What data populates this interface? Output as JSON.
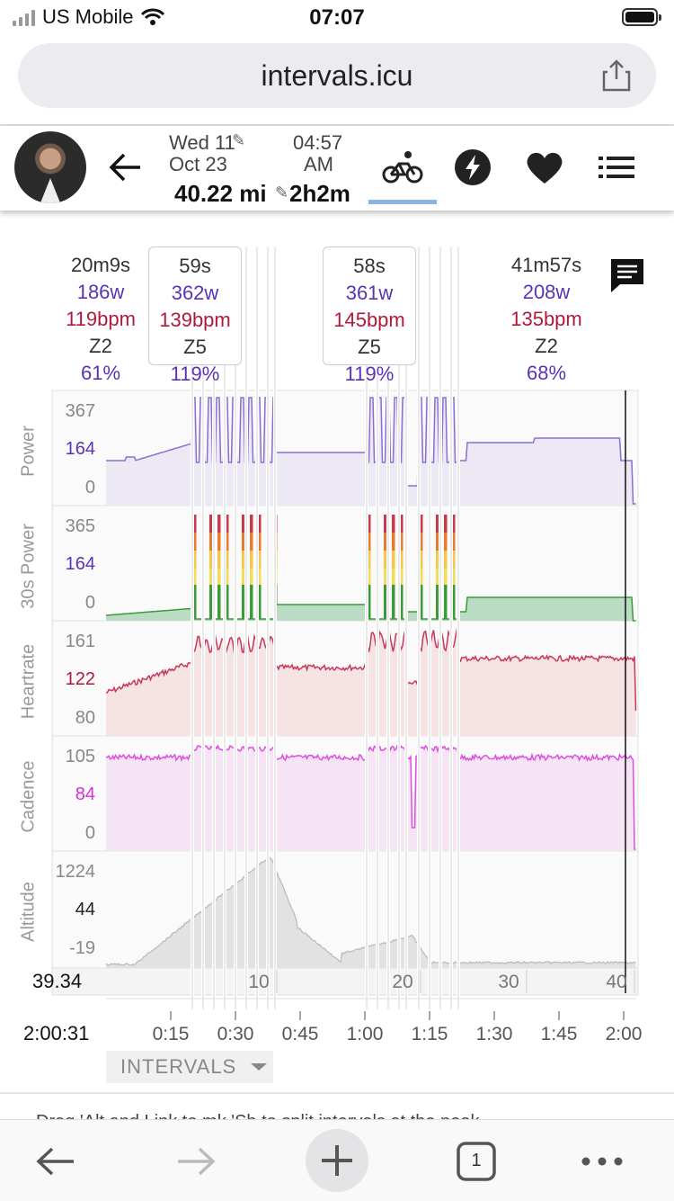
{
  "status": {
    "carrier": "US  Mobile",
    "time": "07:07"
  },
  "browser": {
    "url": "intervals.icu"
  },
  "activity": {
    "date_line1": "Wed 11",
    "date_line2": "Oct 23",
    "time_line1": "04:57",
    "time_line2": "AM",
    "distance": "40.22 mi",
    "duration": "2h2m"
  },
  "interval_headers": [
    {
      "duration": "20m9s",
      "power": "186w",
      "hr": "119bpm",
      "zone": "Z2",
      "pct": "61%"
    },
    {
      "duration": "59s",
      "power": "362w",
      "hr": "139bpm",
      "zone": "Z5",
      "pct": "119%"
    },
    {
      "duration": "58s",
      "power": "361w",
      "hr": "145bpm",
      "zone": "Z5",
      "pct": "119%"
    },
    {
      "duration": "41m57s",
      "power": "208w",
      "hr": "135bpm",
      "zone": "Z2",
      "pct": "68%"
    }
  ],
  "chart_data": {
    "type": "line",
    "x_unit": "time",
    "x_ticks": [
      "0:15",
      "0:30",
      "0:45",
      "1:00",
      "1:15",
      "1:30",
      "1:45",
      "2:00"
    ],
    "cursor_time": "2:00:31",
    "cursor_distance": "39.34",
    "distance_ticks": [
      "10",
      "20",
      "30",
      "40"
    ],
    "panels": [
      {
        "name": "Power",
        "ticks": [
          "367",
          "164",
          "0"
        ],
        "color": "#8a6fd1",
        "fill": "#ece9f4",
        "tick_color": "#5a32b8"
      },
      {
        "name": "30s Power",
        "ticks": [
          "365",
          "164",
          "0"
        ],
        "color": "#3c9a3c",
        "fill": "#b9dcc2",
        "tick_color": "#5a32b8"
      },
      {
        "name": "Heartrate",
        "ticks": [
          "161",
          "122",
          "80"
        ],
        "color": "#c9385a",
        "fill": "#f6e3e3",
        "tick_color": "#b01a3a"
      },
      {
        "name": "Cadence",
        "ticks": [
          "105",
          "84",
          "0"
        ],
        "color": "#dd4fe0",
        "fill": "#f4e4f4",
        "tick_color": "#d62fd6"
      },
      {
        "name": "Altitude",
        "ticks": [
          "1224",
          "44",
          "-19"
        ],
        "color": "#b8b8b8",
        "fill": "#e2e2e2",
        "tick_color": "#222"
      }
    ]
  },
  "intervals_button": "INTERVALS",
  "peek_text": "Drag 'Alt and Link to mk 'Sh to split intervals at the peak",
  "toolbar": {
    "tabs_count": "1"
  }
}
